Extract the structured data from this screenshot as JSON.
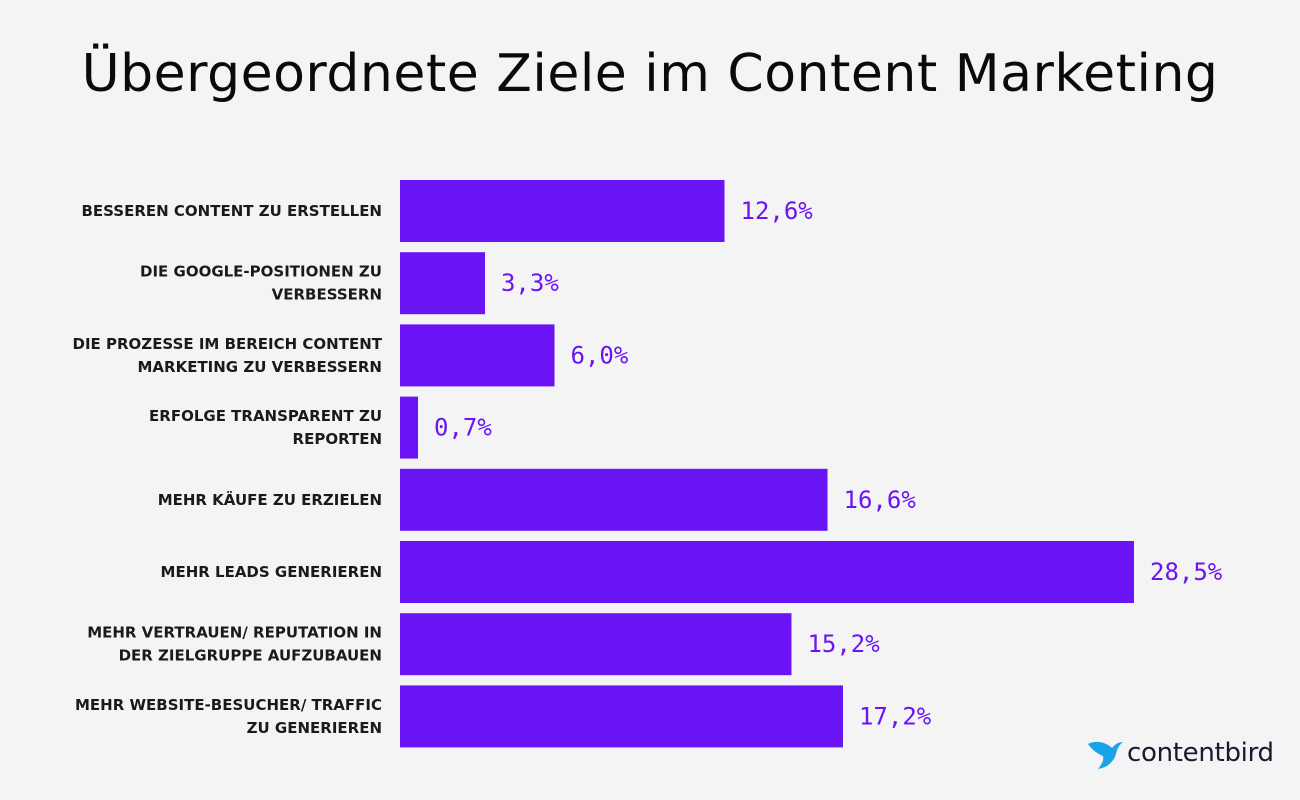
{
  "title": "Übergeordnete Ziele im Content Marketing",
  "colors": {
    "bar": "#6a14f5",
    "value_text": "#6a14f5",
    "background": "#f4f4f4",
    "logo_bird": "#1aa3e8"
  },
  "logo": {
    "text": "contentbird",
    "icon": "bird-icon"
  },
  "chart_data": {
    "type": "bar",
    "orientation": "horizontal",
    "title": "Übergeordnete Ziele im Content Marketing",
    "xlabel": "",
    "ylabel": "",
    "grid": false,
    "legend": "none",
    "xlim": [
      0,
      30
    ],
    "categories": [
      [
        "BESSEREN CONTENT ZU ERSTELLEN"
      ],
      [
        "DIE GOOGLE-POSITIONEN ZU",
        "VERBESSERN"
      ],
      [
        "DIE PROZESSE IM BEREICH CONTENT",
        "MARKETING ZU VERBESSERN"
      ],
      [
        "ERFOLGE TRANSPARENT ZU",
        "REPORTEN"
      ],
      [
        "MEHR KÄUFE ZU ERZIELEN"
      ],
      [
        "MEHR LEADS GENERIEREN"
      ],
      [
        "MEHR VERTRAUEN/ REPUTATION IN",
        "DER ZIELGRUPPE AUFZUBAUEN"
      ],
      [
        "MEHR WEBSITE-BESUCHER/ TRAFFIC",
        "ZU GENERIEREN"
      ]
    ],
    "values": [
      12.6,
      3.3,
      6.0,
      0.7,
      16.6,
      28.5,
      15.2,
      17.2
    ],
    "value_labels": [
      "12,6%",
      "3,3%",
      "6,0%",
      "0,7%",
      "16,6%",
      "28,5%",
      "15,2%",
      "17,2%"
    ]
  }
}
